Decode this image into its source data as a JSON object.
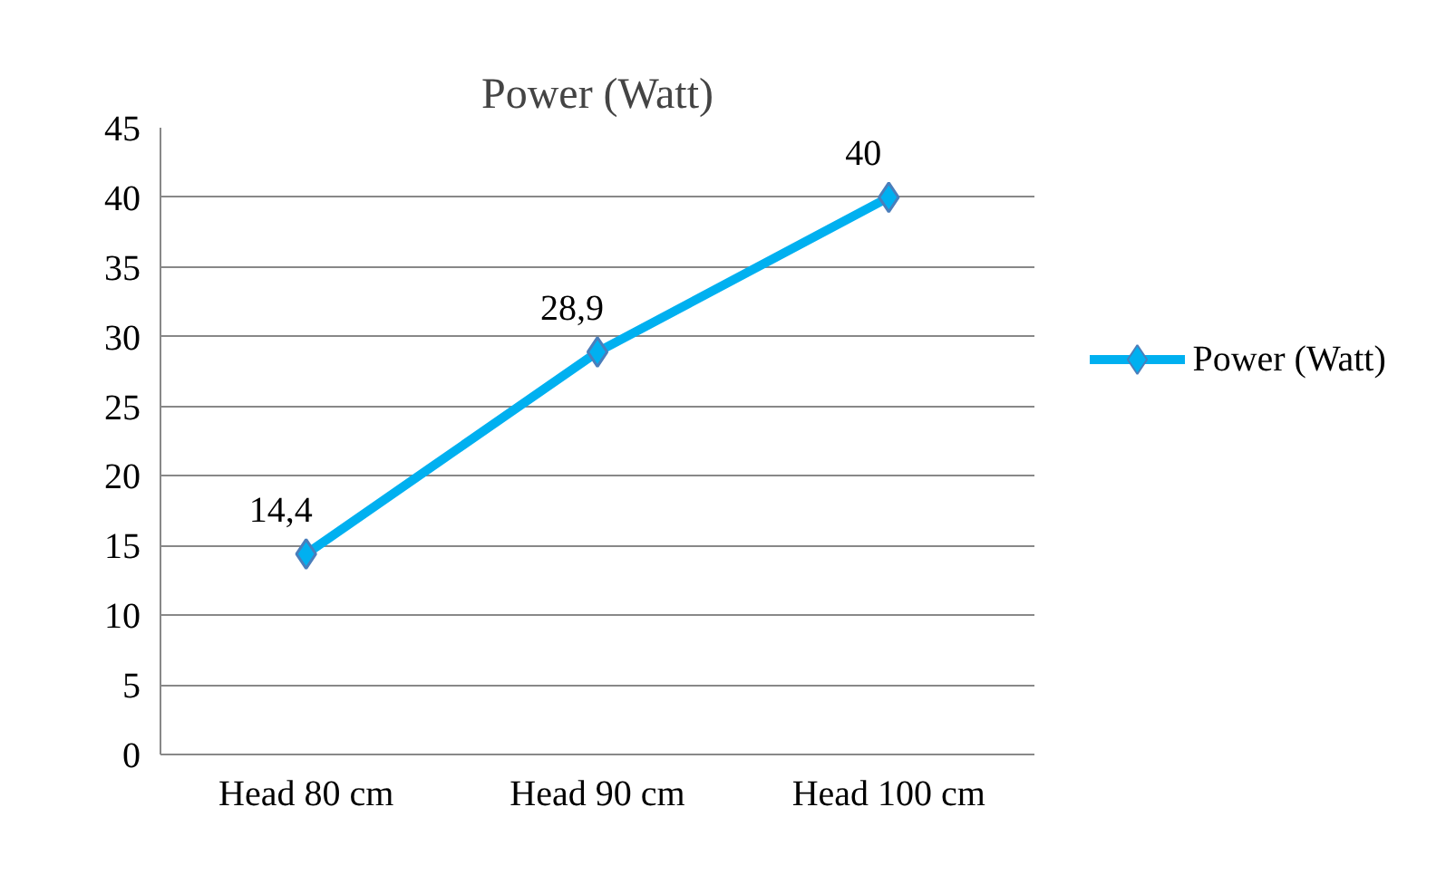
{
  "chart_data": {
    "type": "line",
    "title": "Power (Watt)",
    "categories": [
      "Head 80 cm",
      "Head 90 cm",
      "Head 100 cm"
    ],
    "series": [
      {
        "name": "Power (Watt)",
        "color": "#00b0f0",
        "values": [
          14.4,
          28.9,
          40
        ],
        "value_labels": [
          "14,4",
          "28,9",
          "40"
        ]
      }
    ],
    "ylim": [
      0,
      45
    ],
    "yticks": [
      0,
      5,
      10,
      15,
      20,
      25,
      30,
      35,
      40,
      45
    ],
    "grid": "y",
    "legend": "right",
    "marker": "diamond",
    "line_style": "solid"
  }
}
